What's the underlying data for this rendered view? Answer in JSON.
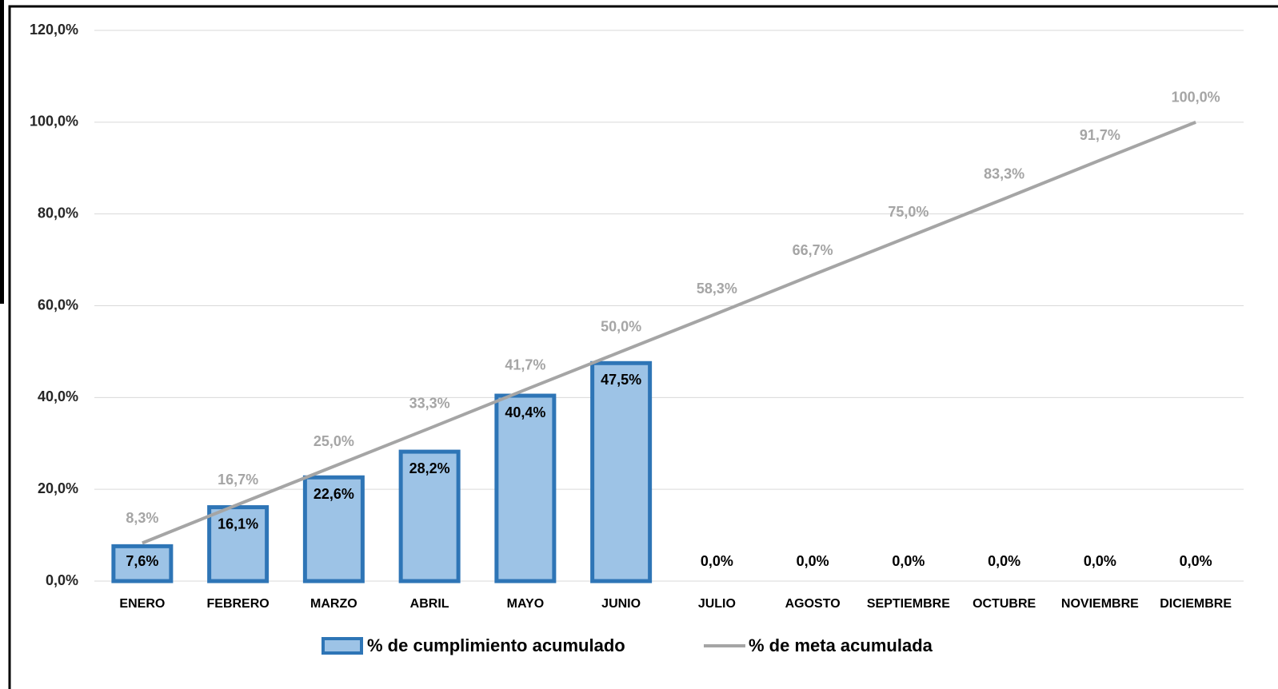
{
  "chart_data": {
    "type": "bar",
    "categories": [
      "ENERO",
      "FEBRERO",
      "MARZO",
      "ABRIL",
      "MAYO",
      "JUNIO",
      "JULIO",
      "AGOSTO",
      "SEPTIEMBRE",
      "OCTUBRE",
      "NOVIEMBRE",
      "DICIEMBRE"
    ],
    "series": [
      {
        "name": "% de cumplimiento acumulado",
        "type": "bar",
        "color": "#9dc3e6",
        "edge_color": "#2e75b6",
        "values": [
          7.6,
          16.1,
          22.6,
          28.2,
          40.4,
          47.5,
          0,
          0,
          0,
          0,
          0,
          0
        ],
        "value_labels": [
          "7,6%",
          "16,1%",
          "22,6%",
          "28,2%",
          "40,4%",
          "47,5%",
          "0,0%",
          "0,0%",
          "0,0%",
          "0,0%",
          "0,0%",
          "0,0%"
        ]
      },
      {
        "name": "% de meta acumulada",
        "type": "line",
        "color": "#a5a5a5",
        "values": [
          8.3,
          16.7,
          25,
          33.3,
          41.7,
          50,
          58.3,
          66.7,
          75,
          83.3,
          91.7,
          100
        ],
        "value_labels": [
          "8,3%",
          "16,7%",
          "25,0%",
          "33,3%",
          "41,7%",
          "50,0%",
          "58,3%",
          "66,7%",
          "75,0%",
          "83,3%",
          "91,7%",
          "100,0%"
        ]
      }
    ],
    "ylim": [
      0,
      120
    ],
    "yticks": [
      {
        "value": 0,
        "label": "0,0%"
      },
      {
        "value": 20,
        "label": "20,0%"
      },
      {
        "value": 40,
        "label": "40,0%"
      },
      {
        "value": 60,
        "label": "60,0%"
      },
      {
        "value": 80,
        "label": "80,0%"
      },
      {
        "value": 100,
        "label": "100,0%"
      },
      {
        "value": 120,
        "label": "120,0%"
      }
    ],
    "grid": true,
    "legend": "bottom"
  }
}
